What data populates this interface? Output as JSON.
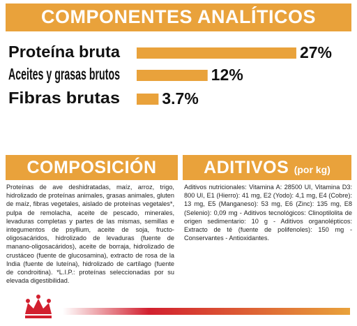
{
  "chart_data": {
    "type": "bar",
    "title": "COMPONENTES ANALÍTICOS",
    "categories": [
      "Proteína bruta",
      "Aceites y grasas brutos",
      "Fibras brutas"
    ],
    "values": [
      27,
      12,
      3.7
    ],
    "value_labels": [
      "27%",
      "12%",
      "3.7%"
    ],
    "color": "#e9a23b"
  },
  "composition": {
    "title": "COMPOSICIÓN",
    "text": "Proteínas de ave deshidratadas, maíz, arroz, trigo, hidrolizado de proteínas animales, grasas animales, gluten de maíz, fibras vegetales, aislado de proteínas vegetales*, pulpa de remolacha, aceite de pescado, minerales, levaduras completas y partes de las mismas, semillas e integumentos de psyllium, aceite de soja, fructo-oligosacáridos, hidrolizado de levaduras (fuente de manano-oligosacáridos), aceite de borraja, hidrolizado de crustáceo (fuente de glucosamina), extracto de rosa de la India (fuente de luteína), hidrolizado de cartílago (fuente de condroitina). *L.I.P.: proteínas seleccionadas por su elevada digestibilidad."
  },
  "additives": {
    "title": "ADITIVOS",
    "subtitle": "(por kg)",
    "text": "Aditivos nutricionales: Vitamina A: 28500 UI, Vitamina D3: 800 UI, E1 (Hierro): 41 mg, E2 (Yodo): 4,1 mg, E4 (Cobre): 13 mg, E5 (Manganeso): 53 mg, E6 (Zinc): 135 mg, E8 (Selenio): 0,09 mg - Aditivos tecnológicos: Clinoptilolita de origen sedimentario: 10 g - Aditivos organolépticos: Extracto de té (fuente de polifenoles): 150 mg - Conservantes - Antioxidantes."
  }
}
